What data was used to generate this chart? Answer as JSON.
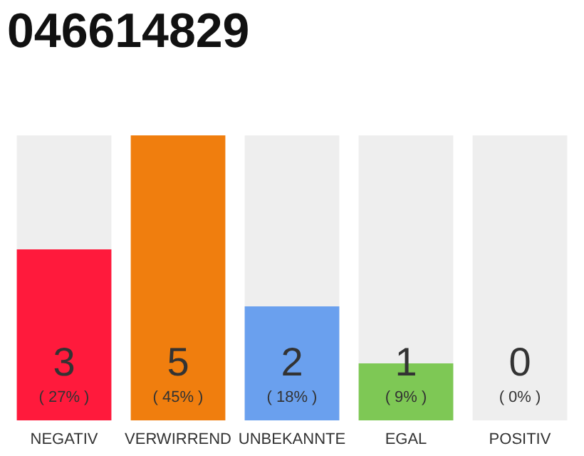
{
  "chart_data": {
    "type": "bar",
    "title": "046614829",
    "categories": [
      "NEGATIV",
      "VERWIRREND",
      "UNBEKANNTE",
      "EGAL",
      "POSITIV"
    ],
    "values": [
      27,
      45,
      18,
      9,
      0
    ],
    "colors": [
      "#ff1a3c",
      "#f07e0e",
      "#6aa0ee",
      "#7ec855",
      "#cccccc"
    ],
    "value_labels": [
      "3\n( 27% )",
      "5\n( 45% )",
      "2\n( 18% )",
      "1\n( 9% )",
      "0\n( 0% )"
    ],
    "bands": [
      {
        "axis": "x",
        "from": "NEGATIV",
        "to": "NEGATIV",
        "color": "#eeeeee"
      },
      {
        "axis": "x",
        "from": "UNBEKANNTE",
        "to": "UNBEKANNTE",
        "color": "#eeeeee"
      },
      {
        "axis": "x",
        "from": "EGAL",
        "to": "EGAL",
        "color": "#eeeeee"
      },
      {
        "axis": "x",
        "from": "POSITIV",
        "to": "POSITIV",
        "color": "#eeeeee"
      }
    ]
  }
}
